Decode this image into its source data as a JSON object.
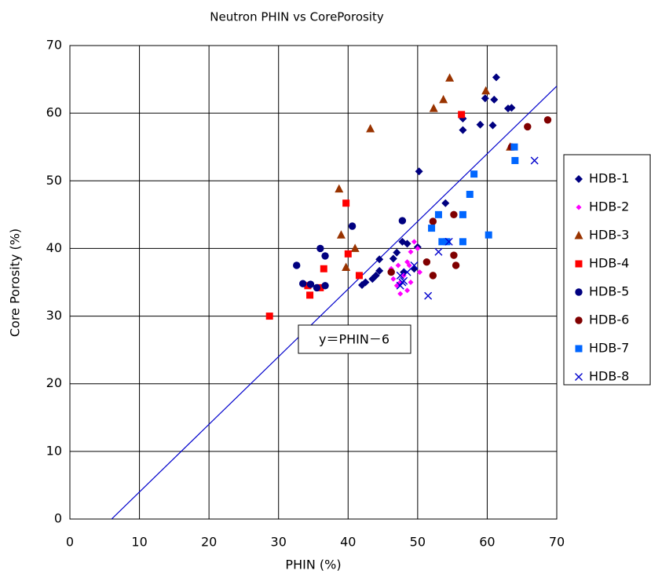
{
  "chart_data": {
    "type": "scatter",
    "title": "Neutron PHIN vs CorePorosity",
    "x_label": "PHIN (%)",
    "y_label": "Core Porosity (%)",
    "annotation": "y＝PHIN－6",
    "xlim": [
      0,
      70
    ],
    "ylim": [
      0,
      70
    ],
    "xticks": [
      0,
      10,
      20,
      30,
      40,
      50,
      60,
      70
    ],
    "yticks": [
      0,
      10,
      20,
      30,
      40,
      50,
      60,
      70
    ],
    "grid": true,
    "legend": "right",
    "reference_line": {
      "color": "#0000cc",
      "x": [
        6,
        70
      ],
      "values": [
        0,
        64
      ]
    },
    "series": [
      {
        "name": "HDB-1",
        "color": "#000080",
        "marker": "diamond",
        "x": [
          61.3,
          61,
          59.7,
          59,
          60.8,
          56.5,
          56.5,
          63.5,
          63,
          50.2,
          54,
          42,
          42.5,
          43.5,
          44,
          44.5,
          44.5,
          46.5,
          47.8,
          48.5,
          50,
          49.5,
          48,
          47
        ],
        "values": [
          65.3,
          62,
          62.2,
          58.3,
          58.2,
          59.2,
          57.5,
          60.8,
          60.7,
          51.4,
          46.7,
          34.6,
          35,
          35.5,
          36,
          36.7,
          38.4,
          38.5,
          41,
          40.7,
          40.2,
          37,
          36.5,
          39.4
        ]
      },
      {
        "name": "HDB-2",
        "color": "#ff00ff",
        "marker": "small-diamond",
        "x": [
          46.5,
          47,
          47.5,
          48,
          47.2,
          48.5,
          49,
          49.5,
          50,
          48.5,
          47.5,
          49,
          50.3,
          46.2,
          48.8
        ],
        "values": [
          35.5,
          34.5,
          35,
          36,
          37.5,
          38,
          39.5,
          41,
          40,
          33.8,
          33.3,
          35,
          36.5,
          37,
          37.5
        ]
      },
      {
        "name": "HDB-3",
        "color": "#993300",
        "marker": "triangle",
        "x": [
          43.2,
          38.7,
          39,
          41,
          39.7,
          52.3,
          53.7,
          54.6,
          59.8,
          63.3
        ],
        "values": [
          57.7,
          48.8,
          42,
          40,
          37.2,
          60.7,
          62,
          65.2,
          63.3,
          55
        ]
      },
      {
        "name": "HDB-4",
        "color": "#ff0000",
        "marker": "square",
        "x": [
          28.7,
          34.5,
          34.2,
          36,
          36.5,
          39.7,
          40,
          41.6,
          56.3
        ],
        "values": [
          30,
          33.1,
          34.5,
          34.2,
          37,
          46.7,
          39.2,
          36,
          59.8
        ]
      },
      {
        "name": "HDB-5",
        "color": "#000080",
        "marker": "circle",
        "x": [
          32.6,
          33.5,
          34.6,
          35.5,
          36.7,
          36,
          36.7,
          40.6,
          47.8
        ],
        "values": [
          37.5,
          34.8,
          34.7,
          34.2,
          34.5,
          40,
          38.9,
          43.3,
          44.1
        ]
      },
      {
        "name": "HDB-6",
        "color": "#800000",
        "marker": "circle",
        "x": [
          46.2,
          51.3,
          52.2,
          52.2,
          55.2,
          55.2,
          55.5,
          65.8,
          68.7,
          63.5
        ],
        "values": [
          36.5,
          38,
          44,
          36,
          45,
          39,
          37.5,
          58,
          59,
          55
        ]
      },
      {
        "name": "HDB-7",
        "color": "#0066ff",
        "marker": "square",
        "x": [
          52,
          53,
          53.5,
          54.2,
          56.5,
          56.5,
          57.5,
          58.1,
          60.2,
          63.9,
          64
        ],
        "values": [
          43,
          45,
          41,
          41,
          45,
          41,
          48,
          51,
          42,
          55,
          53
        ]
      },
      {
        "name": "HDB-8",
        "color": "#0000cc",
        "marker": "x",
        "x": [
          47.5,
          48,
          48.5,
          47.5,
          49.5,
          51.5,
          53,
          54.5,
          66.8,
          47.8
        ],
        "values": [
          36,
          35.2,
          36.5,
          34.5,
          37.5,
          33,
          39.5,
          41,
          53,
          35
        ]
      }
    ]
  }
}
